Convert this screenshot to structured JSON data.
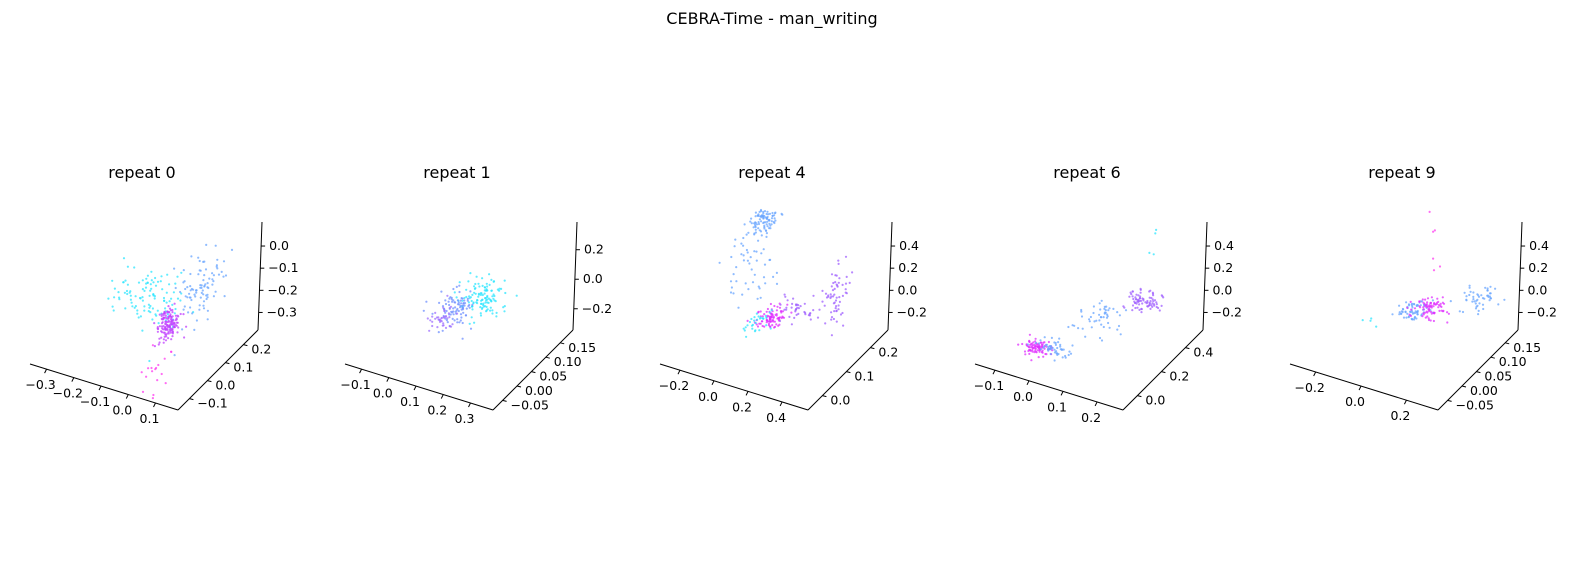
{
  "figure": {
    "title": "CEBRA-Time - man_writing"
  },
  "chart_data": [
    {
      "type": "scatter",
      "title": "repeat 0",
      "xticks": [
        "−0.3",
        "−0.2",
        "−0.1",
        "0.0",
        "0.1"
      ],
      "yticks": [
        "−0.1",
        "0.0",
        "0.1",
        "0.2"
      ],
      "zticks": [
        "0.0",
        "−0.1",
        "−0.2",
        "−0.3"
      ],
      "xlim": [
        -0.35,
        0.15
      ],
      "ylim": [
        -0.15,
        0.25
      ],
      "zlim": [
        -0.35,
        0.05
      ],
      "clusters": [
        {
          "x": -0.1,
          "y": 0.05,
          "z": -0.18,
          "sx": 0.07,
          "sy": 0.04,
          "sz": 0.04,
          "n": 110,
          "color": "#2ee6ff"
        },
        {
          "x": 0.04,
          "y": 0.12,
          "z": -0.15,
          "sx": 0.03,
          "sy": 0.04,
          "sz": 0.04,
          "n": 90,
          "color": "#6aa5ff"
        },
        {
          "x": 0.0,
          "y": 0.02,
          "z": -0.22,
          "sx": 0.015,
          "sy": 0.02,
          "sz": 0.02,
          "n": 140,
          "color": "#c040ff"
        },
        {
          "x": 0.02,
          "y": -0.05,
          "z": -0.3,
          "sx": 0.02,
          "sy": 0.02,
          "sz": 0.04,
          "n": 18,
          "color": "#ff3cf0"
        }
      ]
    },
    {
      "type": "scatter",
      "title": "repeat 1",
      "xticks": [
        "−0.1",
        "0.0",
        "0.1",
        "0.2",
        "0.3"
      ],
      "yticks": [
        "−0.05",
        "0.00",
        "0.05",
        "0.10",
        "0.15"
      ],
      "zticks": [
        "0.2",
        "0.0",
        "−0.2"
      ],
      "xlim": [
        -0.15,
        0.32
      ],
      "ylim": [
        -0.07,
        0.17
      ],
      "zlim": [
        -0.3,
        0.35
      ],
      "clusters": [
        {
          "x": 0.15,
          "y": 0.05,
          "z": 0.0,
          "sx": 0.03,
          "sy": 0.02,
          "sz": 0.03,
          "n": 120,
          "color": "#2ee6ff"
        },
        {
          "x": 0.08,
          "y": 0.03,
          "z": -0.06,
          "sx": 0.03,
          "sy": 0.02,
          "sz": 0.03,
          "n": 90,
          "color": "#7090ff"
        },
        {
          "x": 0.05,
          "y": 0.02,
          "z": -0.1,
          "sx": 0.015,
          "sy": 0.015,
          "sz": 0.02,
          "n": 40,
          "color": "#a070ff"
        }
      ]
    },
    {
      "type": "scatter",
      "title": "repeat 4",
      "xticks": [
        "−0.2",
        "0.0",
        "0.2",
        "0.4"
      ],
      "yticks": [
        "0.0",
        "0.1",
        "0.2"
      ],
      "zticks": [
        "0.4",
        "0.2",
        "0.0",
        "−0.2"
      ],
      "xlim": [
        -0.3,
        0.45
      ],
      "ylim": [
        -0.05,
        0.25
      ],
      "zlim": [
        -0.3,
        0.5
      ],
      "clusters": [
        {
          "x": -0.1,
          "y": 0.15,
          "z": 0.35,
          "sx": 0.03,
          "sy": 0.02,
          "sz": 0.03,
          "n": 90,
          "color": "#6aa5ff"
        },
        {
          "x": -0.12,
          "y": 0.12,
          "z": 0.15,
          "sx": 0.05,
          "sy": 0.04,
          "sz": 0.1,
          "n": 50,
          "color": "#6aa5ff"
        },
        {
          "x": 0.12,
          "y": 0.05,
          "z": 0.0,
          "sx": 0.03,
          "sy": 0.02,
          "sz": 0.02,
          "n": 90,
          "color": "#e030ff"
        },
        {
          "x": 0.2,
          "y": 0.1,
          "z": 0.02,
          "sx": 0.05,
          "sy": 0.02,
          "sz": 0.02,
          "n": 40,
          "color": "#a060ff"
        },
        {
          "x": 0.32,
          "y": 0.15,
          "z": 0.05,
          "sx": 0.02,
          "sy": 0.02,
          "sz": 0.08,
          "n": 60,
          "color": "#a060ff"
        },
        {
          "x": 0.05,
          "y": 0.04,
          "z": -0.04,
          "sx": 0.03,
          "sy": 0.02,
          "sz": 0.03,
          "n": 30,
          "color": "#2ee6ff"
        }
      ]
    },
    {
      "type": "scatter",
      "title": "repeat 6",
      "xticks": [
        "−0.1",
        "0.0",
        "0.1",
        "0.2"
      ],
      "yticks": [
        "0.0",
        "0.2",
        "0.4"
      ],
      "zticks": [
        "0.4",
        "0.2",
        "0.0",
        "−0.2"
      ],
      "xlim": [
        -0.15,
        0.3
      ],
      "ylim": [
        -0.1,
        0.5
      ],
      "zlim": [
        -0.3,
        0.55
      ],
      "clusters": [
        {
          "x": -0.05,
          "y": 0.05,
          "z": -0.2,
          "sx": 0.02,
          "sy": 0.02,
          "sz": 0.02,
          "n": 90,
          "color": "#e030ff"
        },
        {
          "x": 0.0,
          "y": 0.08,
          "z": -0.2,
          "sx": 0.03,
          "sy": 0.02,
          "sz": 0.02,
          "n": 50,
          "color": "#6aa5ff"
        },
        {
          "x": 0.1,
          "y": 0.2,
          "z": -0.05,
          "sx": 0.04,
          "sy": 0.05,
          "sz": 0.03,
          "n": 50,
          "color": "#6aa5ff"
        },
        {
          "x": 0.2,
          "y": 0.3,
          "z": 0.05,
          "sx": 0.03,
          "sy": 0.04,
          "sz": 0.02,
          "n": 80,
          "color": "#a060ff"
        },
        {
          "x": 0.2,
          "y": 0.35,
          "z": 0.35,
          "sx": 0.01,
          "sy": 0.01,
          "sz": 0.15,
          "n": 4,
          "color": "#2ee6ff"
        }
      ]
    },
    {
      "type": "scatter",
      "title": "repeat 9",
      "xticks": [
        "−0.2",
        "0.0",
        "0.2"
      ],
      "yticks": [
        "−0.05",
        "0.00",
        "0.05",
        "0.10",
        "0.15"
      ],
      "zticks": [
        "0.4",
        "0.2",
        "0.0",
        "−0.2"
      ],
      "xlim": [
        -0.3,
        0.35
      ],
      "ylim": [
        -0.07,
        0.17
      ],
      "zlim": [
        -0.3,
        0.55
      ],
      "clusters": [
        {
          "x": 0.05,
          "y": 0.05,
          "z": 0.0,
          "sx": 0.03,
          "sy": 0.015,
          "sz": 0.02,
          "n": 70,
          "color": "#6aa5ff"
        },
        {
          "x": 0.1,
          "y": 0.07,
          "z": 0.0,
          "sx": 0.04,
          "sy": 0.015,
          "sz": 0.02,
          "n": 80,
          "color": "#e030ff"
        },
        {
          "x": 0.25,
          "y": 0.12,
          "z": 0.03,
          "sx": 0.03,
          "sy": 0.02,
          "sz": 0.04,
          "n": 50,
          "color": "#6aa5ff"
        },
        {
          "x": 0.12,
          "y": 0.08,
          "z": 0.35,
          "sx": 0.01,
          "sy": 0.01,
          "sz": 0.1,
          "n": 6,
          "color": "#ff3cf0"
        },
        {
          "x": -0.1,
          "y": 0.0,
          "z": -0.05,
          "sx": 0.05,
          "sy": 0.01,
          "sz": 0.01,
          "n": 4,
          "color": "#2ee6ff"
        }
      ]
    }
  ]
}
